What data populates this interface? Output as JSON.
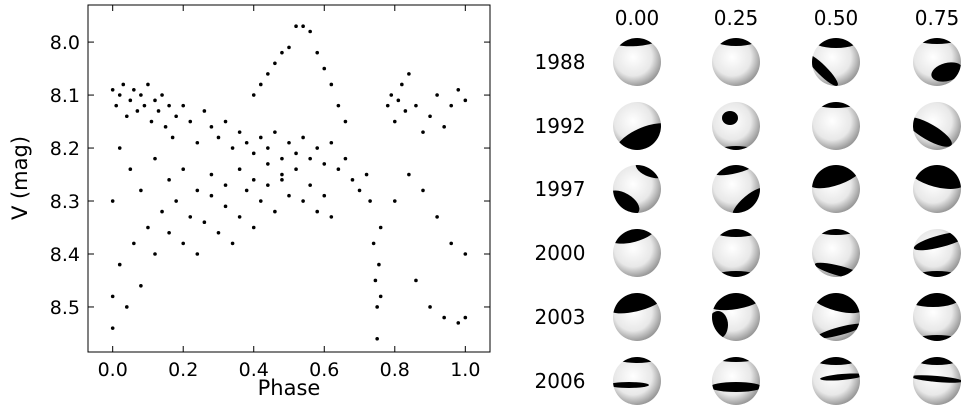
{
  "chart_data": {
    "type": "scatter",
    "xlabel": "Phase",
    "ylabel": "V (mag)",
    "color": "#000000",
    "xlim": [
      -0.07,
      1.07
    ],
    "ylim": [
      8.585,
      7.93
    ],
    "xticks": [
      {
        "value": 0,
        "label": "0.0"
      },
      0.2,
      0.4,
      0.6,
      0.8,
      {
        "value": 1,
        "label": "1.0"
      }
    ],
    "yticks": [
      {
        "value": 8,
        "label": "8.0"
      },
      8.1,
      8.2,
      8.3,
      8.4,
      8.5
    ],
    "x": [
      0.0,
      0.01,
      0.02,
      0.03,
      0.04,
      0.05,
      0.06,
      0.07,
      0.08,
      0.09,
      0.1,
      0.11,
      0.12,
      0.13,
      0.14,
      0.15,
      0.16,
      0.17,
      0.18,
      0.2,
      0.22,
      0.24,
      0.26,
      0.28,
      0.3,
      0.32,
      0.34,
      0.36,
      0.38,
      0.4,
      0.42,
      0.44,
      0.46,
      0.48,
      0.5,
      0.52,
      0.54,
      0.56,
      0.58,
      0.6,
      0.62,
      0.64,
      0.66,
      0.68,
      0.7,
      0.72,
      0.73,
      0.74,
      0.745,
      0.75,
      0.755,
      0.76,
      0.75,
      0.76,
      0.78,
      0.79,
      0.8,
      0.81,
      0.82,
      0.83,
      0.84,
      0.86,
      0.88,
      0.9,
      0.92,
      0.94,
      0.96,
      0.98,
      1.0,
      0.8,
      0.84,
      0.88,
      0.92,
      0.96,
      1.0,
      0.86,
      0.9,
      0.94,
      0.98,
      1.0,
      0.0,
      0.0,
      0.0,
      0.02,
      0.04,
      0.06,
      0.08,
      0.1,
      0.12,
      0.14,
      0.16,
      0.18,
      0.2,
      0.22,
      0.24,
      0.26,
      0.28,
      0.3,
      0.32,
      0.34,
      0.36,
      0.38,
      0.4,
      0.42,
      0.44,
      0.46,
      0.48,
      0.5,
      0.52,
      0.54,
      0.56,
      0.58,
      0.6,
      0.62,
      0.02,
      0.05,
      0.08,
      0.12,
      0.16,
      0.2,
      0.24,
      0.28,
      0.32,
      0.36,
      0.4,
      0.44,
      0.48,
      0.4,
      0.42,
      0.44,
      0.46,
      0.48,
      0.5,
      0.52,
      0.54,
      0.56,
      0.58,
      0.6,
      0.62,
      0.64,
      0.66
    ],
    "values": [
      8.09,
      8.12,
      8.1,
      8.08,
      8.14,
      8.11,
      8.09,
      8.13,
      8.1,
      8.12,
      8.08,
      8.15,
      8.11,
      8.13,
      8.1,
      8.16,
      8.12,
      8.18,
      8.14,
      8.12,
      8.15,
      8.19,
      8.13,
      8.16,
      8.18,
      8.15,
      8.2,
      8.17,
      8.19,
      8.21,
      8.18,
      8.2,
      8.17,
      8.22,
      8.19,
      8.21,
      8.18,
      8.22,
      8.2,
      8.23,
      8.19,
      8.24,
      8.22,
      8.26,
      8.28,
      8.25,
      8.3,
      8.38,
      8.45,
      8.5,
      8.42,
      8.35,
      8.56,
      8.48,
      8.12,
      8.1,
      8.15,
      8.11,
      8.08,
      8.13,
      8.06,
      8.12,
      8.17,
      8.14,
      8.1,
      8.16,
      8.12,
      8.09,
      8.11,
      8.3,
      8.25,
      8.28,
      8.33,
      8.38,
      8.4,
      8.45,
      8.5,
      8.52,
      8.53,
      8.52,
      8.3,
      8.48,
      8.54,
      8.42,
      8.5,
      8.38,
      8.46,
      8.35,
      8.4,
      8.32,
      8.36,
      8.3,
      8.38,
      8.33,
      8.4,
      8.34,
      8.29,
      8.36,
      8.31,
      8.38,
      8.33,
      8.28,
      8.35,
      8.3,
      8.27,
      8.32,
      8.26,
      8.29,
      8.24,
      8.3,
      8.27,
      8.32,
      8.29,
      8.33,
      8.2,
      8.24,
      8.28,
      8.22,
      8.26,
      8.24,
      8.28,
      8.25,
      8.27,
      8.24,
      8.26,
      8.23,
      8.25,
      8.1,
      8.08,
      8.06,
      8.04,
      8.02,
      8.01,
      7.97,
      7.97,
      7.98,
      8.02,
      8.05,
      8.08,
      8.12,
      8.15
    ]
  },
  "maps": {
    "phases": [
      "0.00",
      "0.25",
      "0.50",
      "0.75"
    ],
    "years": [
      "1988",
      "1992",
      "1997",
      "2000",
      "2003",
      "2006"
    ]
  }
}
